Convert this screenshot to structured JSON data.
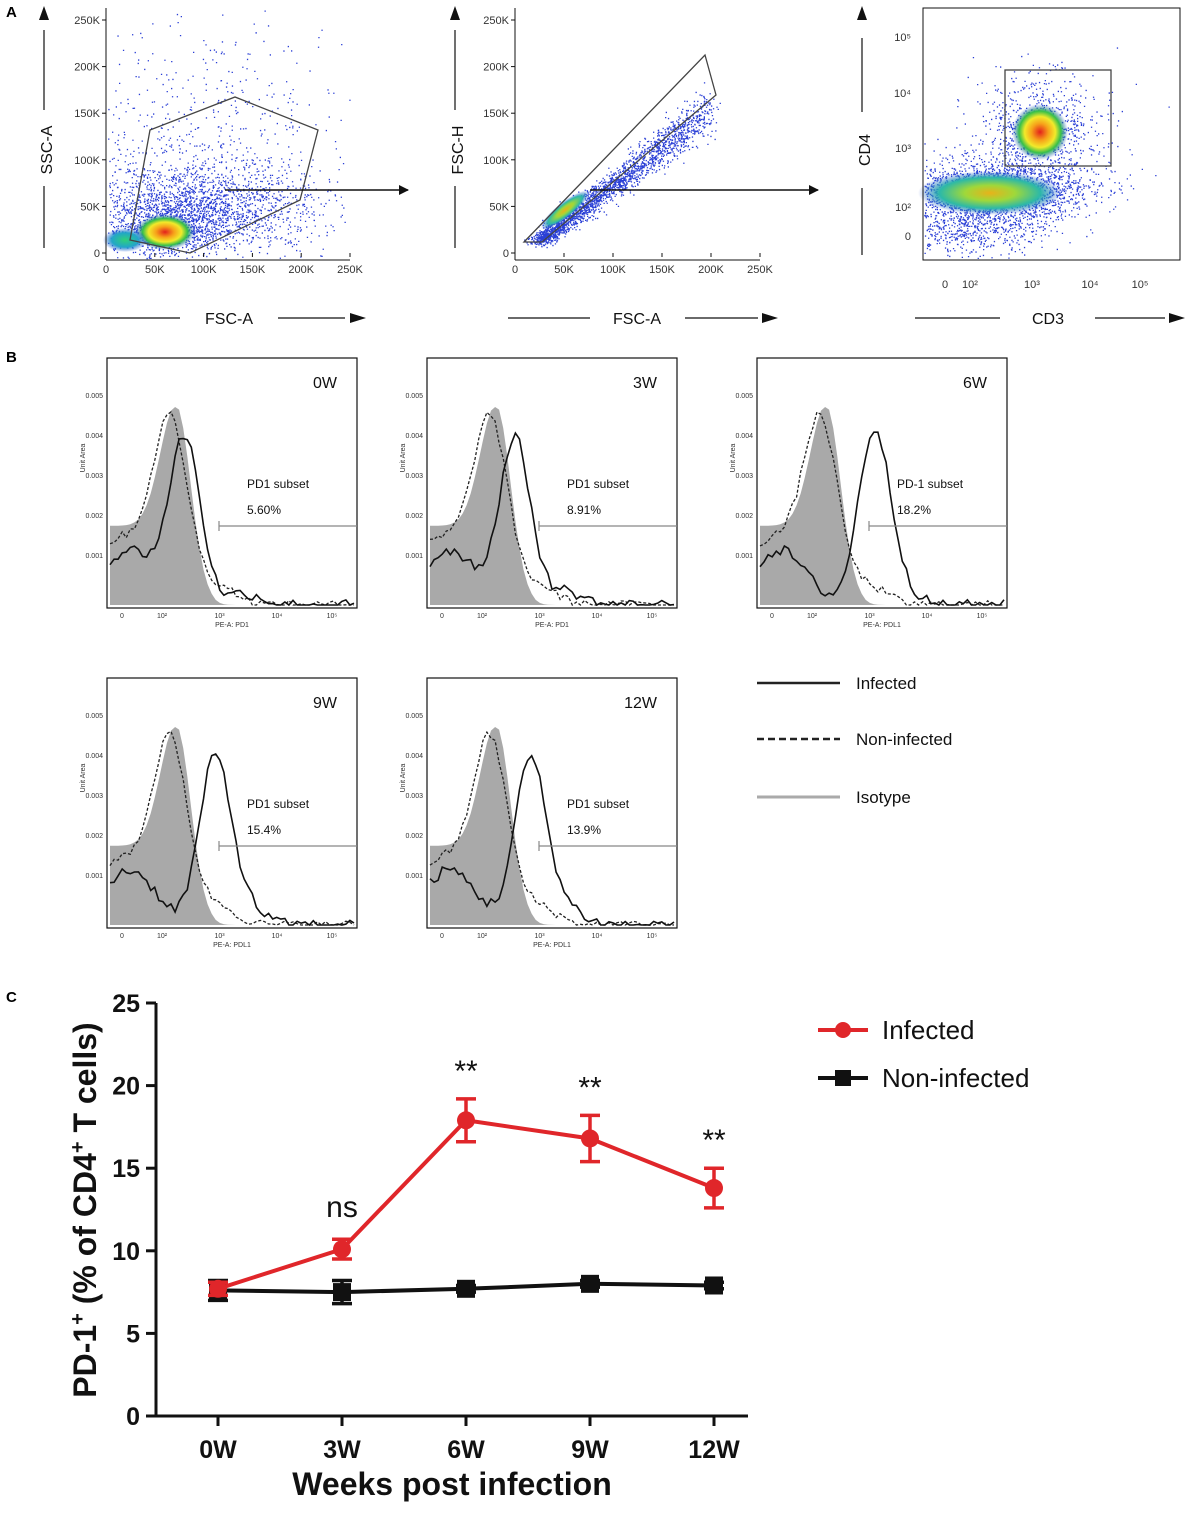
{
  "panels": {
    "a": "A",
    "b": "B",
    "c": "C"
  },
  "panel_a": {
    "plots": [
      {
        "xlabel": "FSC-A",
        "ylabel": "SSC-A",
        "xticks": [
          "0",
          "50K",
          "100K",
          "150K",
          "200K",
          "250K"
        ],
        "yticks": [
          "0",
          "50K",
          "100K",
          "150K",
          "200K",
          "250K"
        ]
      },
      {
        "xlabel": "FSC-A",
        "ylabel": "FSC-H",
        "xticks": [
          "0",
          "50K",
          "100K",
          "150K",
          "200K",
          "250K"
        ],
        "yticks": [
          "0",
          "50K",
          "100K",
          "150K",
          "200K",
          "250K"
        ]
      },
      {
        "xlabel": "CD3",
        "ylabel": "CD4",
        "xticks": [
          "0",
          "10²",
          "10³",
          "10⁴",
          "10⁵"
        ],
        "yticks": [
          "0",
          "10²",
          "10³",
          "10⁴",
          "10⁵"
        ]
      }
    ]
  },
  "panel_b": {
    "histograms": [
      {
        "week": "0W",
        "gate_label": "PD1 subset",
        "percent": "5.60%",
        "xaxis": "PE-A: PD1"
      },
      {
        "week": "3W",
        "gate_label": "PD1 subset",
        "percent": "8.91%",
        "xaxis": "PE-A: PD1"
      },
      {
        "week": "6W",
        "gate_label": "PD-1 subset",
        "percent": "18.2%",
        "xaxis": "PE-A: PDL1"
      },
      {
        "week": "9W",
        "gate_label": "PD1 subset",
        "percent": "15.4%",
        "xaxis": "PE-A: PDL1"
      },
      {
        "week": "12W",
        "gate_label": "PD1 subset",
        "percent": "13.9%",
        "xaxis": "PE-A: PDL1"
      }
    ],
    "y_axis_label": "Unit Area",
    "yticks": [
      "0.005",
      "0.004",
      "0.003",
      "0.002",
      "0.001"
    ],
    "xticks": [
      "0",
      "10²",
      "10³",
      "10⁴",
      "10⁵"
    ],
    "legend": [
      {
        "label": "Infected",
        "style": "solid",
        "color": "#222222"
      },
      {
        "label": "Non-infected",
        "style": "dashed",
        "color": "#222222"
      },
      {
        "label": "Isotype",
        "style": "solid",
        "color": "#aaaaaa"
      }
    ]
  },
  "chart_data": {
    "type": "line",
    "title": "",
    "xlabel": "Weeks post infection",
    "ylabel": "PD-1⁺ (% of CD4⁺ T cells)",
    "ylabel_parts": {
      "a": "PD-1",
      "a_sup": "+",
      "b": " (% of CD4",
      "b_sup": "+",
      "c": " T cells)"
    },
    "categories": [
      "0W",
      "3W",
      "6W",
      "9W",
      "12W"
    ],
    "ylim": [
      0,
      25
    ],
    "yticks": [
      0,
      5,
      10,
      15,
      20,
      25
    ],
    "series": [
      {
        "name": "Infected",
        "color": "#e0262a",
        "marker": "circle",
        "values": [
          7.7,
          10.1,
          17.9,
          16.8,
          13.8
        ],
        "errors": [
          0.4,
          0.6,
          1.3,
          1.4,
          1.2
        ]
      },
      {
        "name": "Non-infected",
        "color": "#111111",
        "marker": "square",
        "values": [
          7.6,
          7.5,
          7.7,
          8.0,
          7.9
        ],
        "errors": [
          0.6,
          0.7,
          0.2,
          0.2,
          0.2
        ]
      }
    ],
    "annotations": [
      "",
      "ns",
      "**",
      "**",
      "**"
    ]
  }
}
